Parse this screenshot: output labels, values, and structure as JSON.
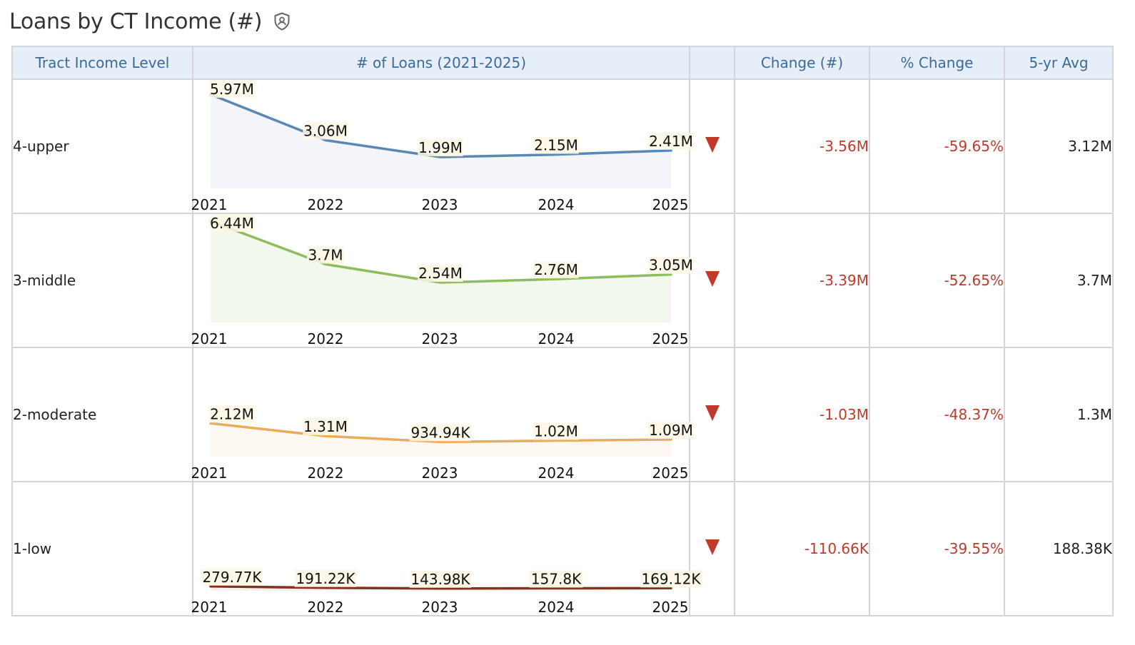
{
  "title": "Loans by CT Income (#)",
  "headers": {
    "level": "Tract Income Level",
    "loans": "# of Loans (2021-2025)",
    "trend": "",
    "change": "Change (#)",
    "pct_change": "% Change",
    "avg": "5-yr Avg"
  },
  "rows": [
    {
      "level": "4-upper",
      "change": "-3.56M",
      "pct_change": "-59.65%",
      "avg": "3.12M",
      "color": "#5b87b5",
      "fill": "#f3f5fa"
    },
    {
      "level": "3-middle",
      "change": "-3.39M",
      "pct_change": "-52.65%",
      "avg": "3.7M",
      "color": "#8fbd5a",
      "fill": "#f3f8ef"
    },
    {
      "level": "2-moderate",
      "change": "-1.03M",
      "pct_change": "-48.37%",
      "avg": "1.3M",
      "color": "#e9ac5c",
      "fill": "#fdf8f1"
    },
    {
      "level": "1-low",
      "change": "-110.66K",
      "pct_change": "-39.55%",
      "avg": "188.38K",
      "color": "#8b2d1f",
      "fill": "#f7f1f0"
    }
  ],
  "chart_data": [
    {
      "type": "area",
      "series": [
        {
          "name": "4-upper",
          "x": [
            "2021",
            "2022",
            "2023",
            "2024",
            "2025"
          ],
          "values": [
            5970000,
            3060000,
            1990000,
            2150000,
            2410000
          ],
          "labels": [
            "5.97M",
            "3.06M",
            "1.99M",
            "2.15M",
            "2.41M"
          ]
        }
      ],
      "ylim": [
        0,
        6440000
      ]
    },
    {
      "type": "area",
      "series": [
        {
          "name": "3-middle",
          "x": [
            "2021",
            "2022",
            "2023",
            "2024",
            "2025"
          ],
          "values": [
            6440000,
            3700000,
            2540000,
            2760000,
            3050000
          ],
          "labels": [
            "6.44M",
            "3.7M",
            "2.54M",
            "2.76M",
            "3.05M"
          ]
        }
      ],
      "ylim": [
        0,
        6440000
      ]
    },
    {
      "type": "area",
      "series": [
        {
          "name": "2-moderate",
          "x": [
            "2021",
            "2022",
            "2023",
            "2024",
            "2025"
          ],
          "values": [
            2120000,
            1310000,
            934940,
            1020000,
            1090000
          ],
          "labels": [
            "2.12M",
            "1.31M",
            "934.94K",
            "1.02M",
            "1.09M"
          ]
        }
      ],
      "ylim": [
        0,
        6440000
      ]
    },
    {
      "type": "area",
      "series": [
        {
          "name": "1-low",
          "x": [
            "2021",
            "2022",
            "2023",
            "2024",
            "2025"
          ],
          "values": [
            279770,
            191220,
            143980,
            157800,
            169120
          ],
          "labels": [
            "279.77K",
            "191.22K",
            "143.98K",
            "157.8K",
            "169.12K"
          ]
        }
      ],
      "ylim": [
        0,
        6440000
      ]
    }
  ],
  "colors": {
    "header_bg": "#e6eef9",
    "header_text": "#3e6a97",
    "negative": "#c0392b",
    "label_bg": "#fbf6e3"
  },
  "icons": {
    "title": "shield-user-icon",
    "trend": "down-triangle-icon"
  }
}
